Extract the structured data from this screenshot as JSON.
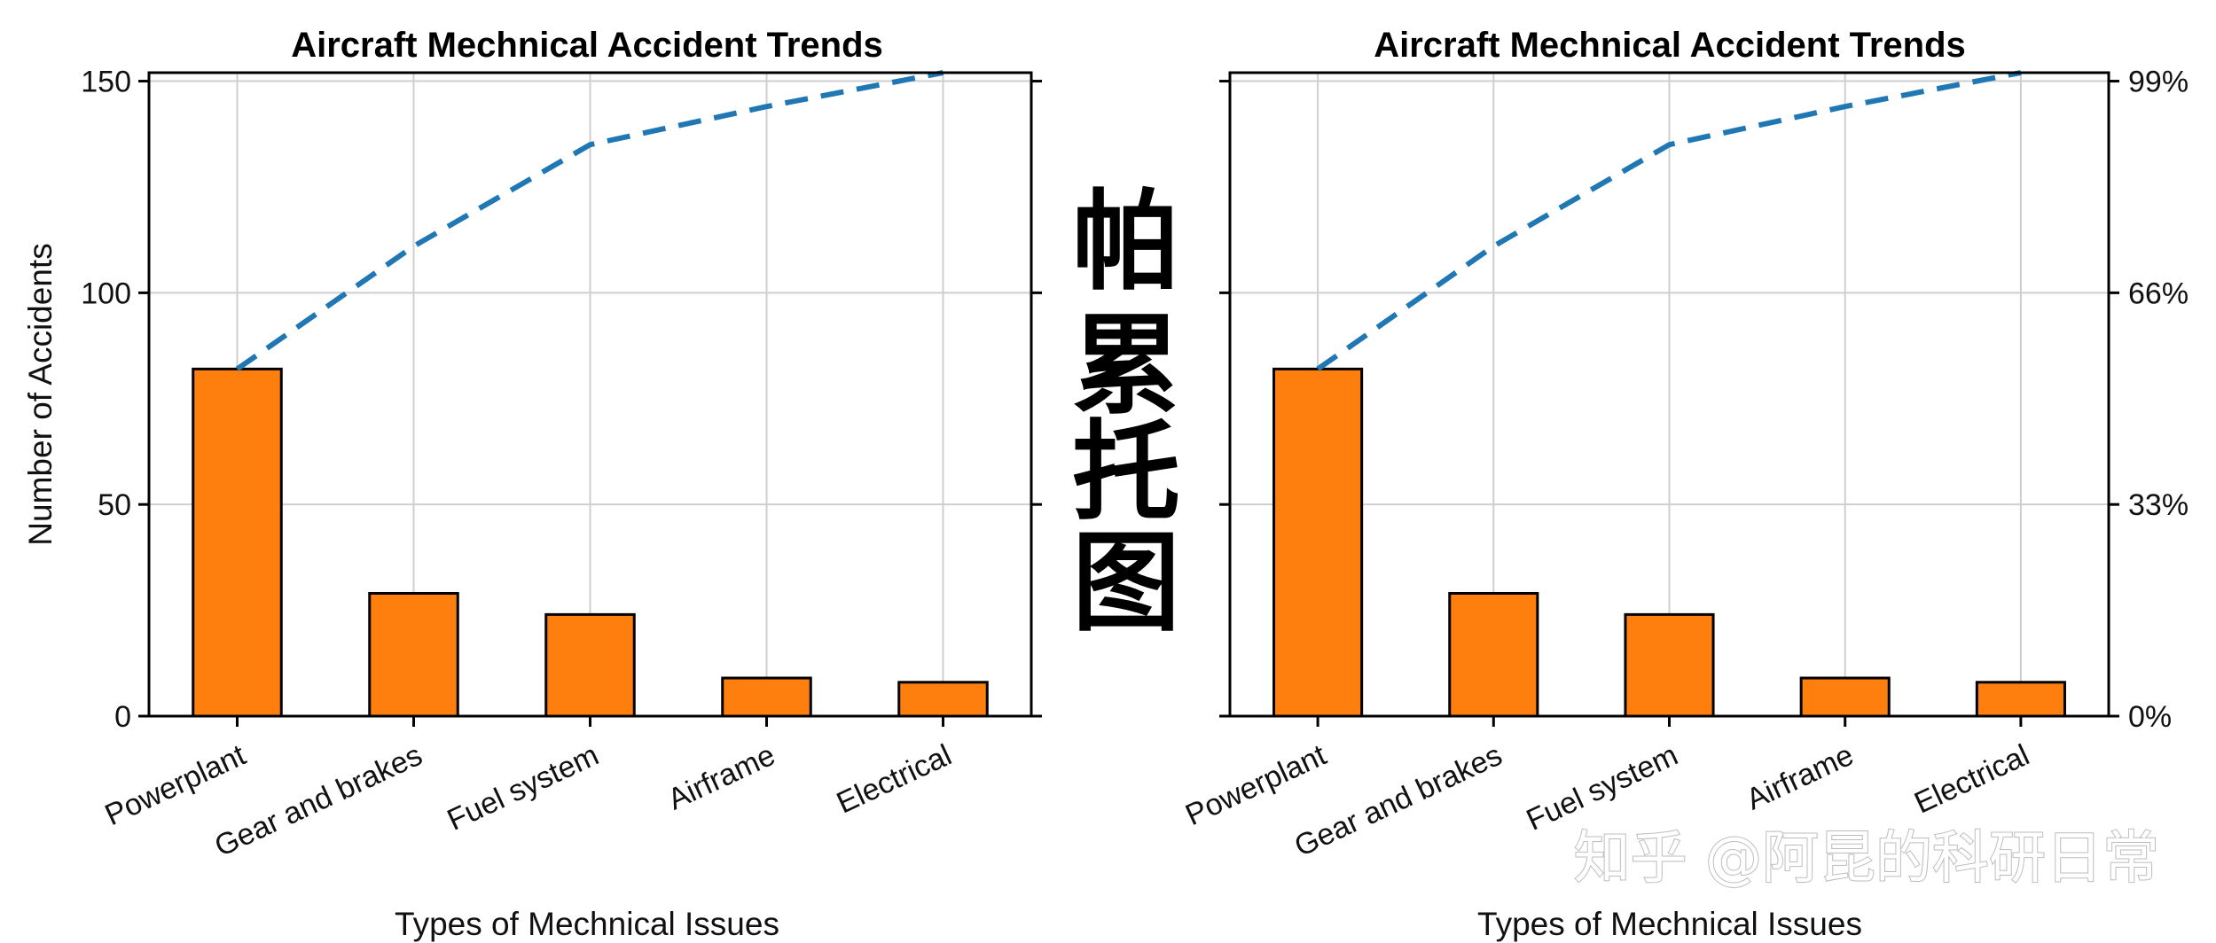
{
  "chart_data": [
    {
      "type": "bar",
      "title": "Aircraft Mechnical Accident Trends",
      "xlabel": "Types of Mechnical Issues",
      "ylabel": "Number of Accidents",
      "categories": [
        "Powerplant",
        "Gear and brakes",
        "Fuel system",
        "Airframe",
        "Electrical"
      ],
      "values": [
        82,
        29,
        24,
        9,
        8
      ],
      "ylim": [
        0,
        152
      ],
      "yticks": [
        0,
        50,
        100,
        150
      ],
      "cumulative_line": [
        82,
        111,
        135,
        144,
        152
      ],
      "grid": true
    },
    {
      "type": "bar",
      "title": "Aircraft Mechnical Accident Trends",
      "xlabel": "Types of Mechnical Issues",
      "ylabel": "",
      "categories": [
        "Powerplant",
        "Gear and brakes",
        "Fuel system",
        "Airframe",
        "Electrical"
      ],
      "values": [
        82,
        29,
        24,
        9,
        8
      ],
      "ylim": [
        0,
        152
      ],
      "cumulative_line": [
        82,
        111,
        135,
        144,
        152
      ],
      "secondary_yticks": [
        "0%",
        "33%",
        "66%",
        "99%"
      ],
      "grid": true
    }
  ],
  "overlay": {
    "calligraphy": [
      "帕",
      "累",
      "托",
      "图"
    ],
    "watermark": "知乎 @阿昆的科研日常"
  },
  "colors": {
    "bar": "#ff7f0e",
    "line": "#1f77b4",
    "grid": "#cfcfcf"
  }
}
